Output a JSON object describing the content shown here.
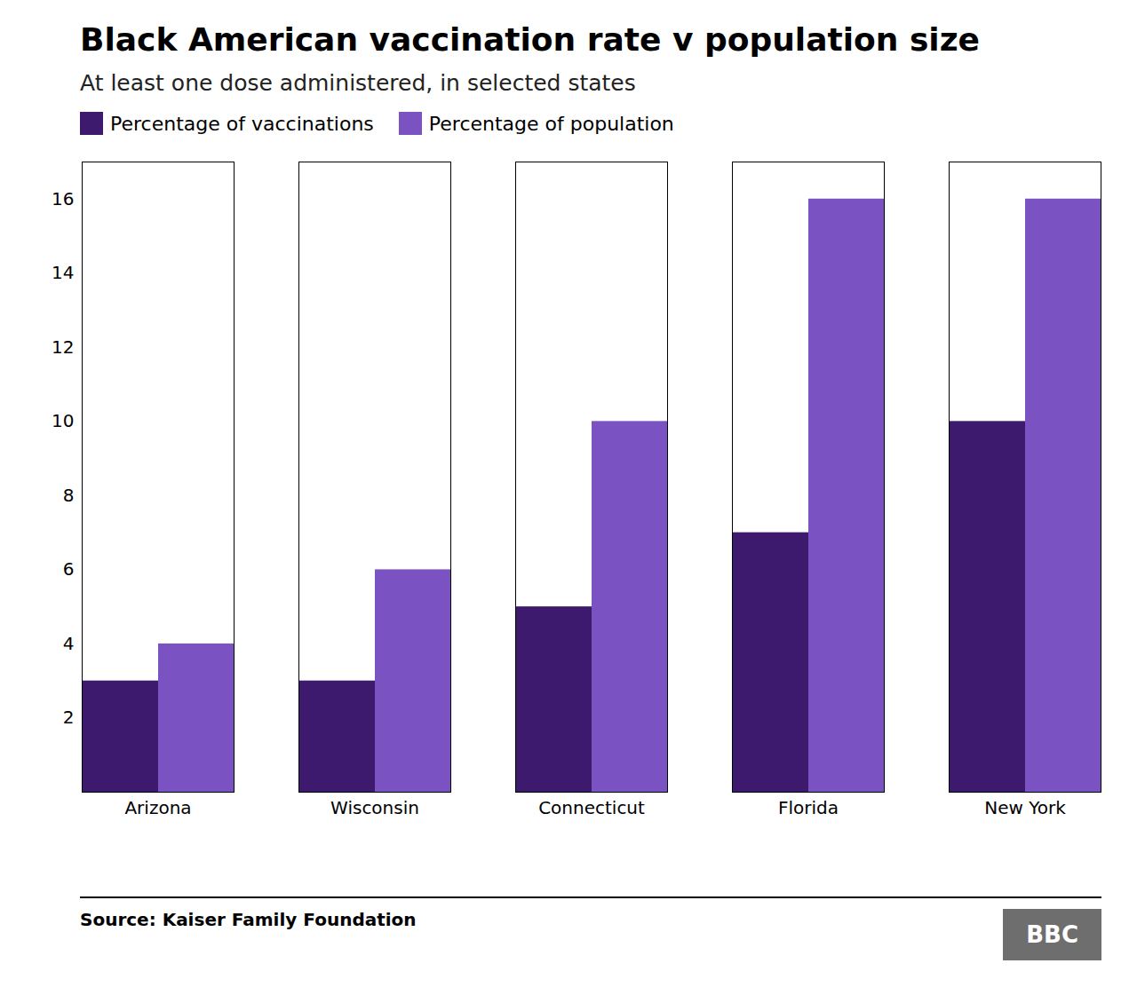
{
  "chart_data": {
    "type": "bar",
    "title": "Black American vaccination rate v population size",
    "subtitle": "At least one dose administered, in selected states",
    "categories": [
      "Arizona",
      "Wisconsin",
      "Connecticut",
      "Florida",
      "New York"
    ],
    "series": [
      {
        "name": "Percentage of vaccinations",
        "color": "#3d1a6e",
        "values": [
          3,
          3,
          5,
          7,
          10
        ]
      },
      {
        "name": "Percentage of population",
        "color": "#7b52c1",
        "values": [
          4,
          6,
          10,
          16,
          16
        ]
      }
    ],
    "ylim": [
      0,
      17
    ],
    "yticks": [
      2,
      4,
      6,
      8,
      10,
      12,
      14,
      16
    ],
    "grid": false,
    "legend": "upper left",
    "source": "Source: Kaiser Family Foundation",
    "logo": "BBC"
  }
}
